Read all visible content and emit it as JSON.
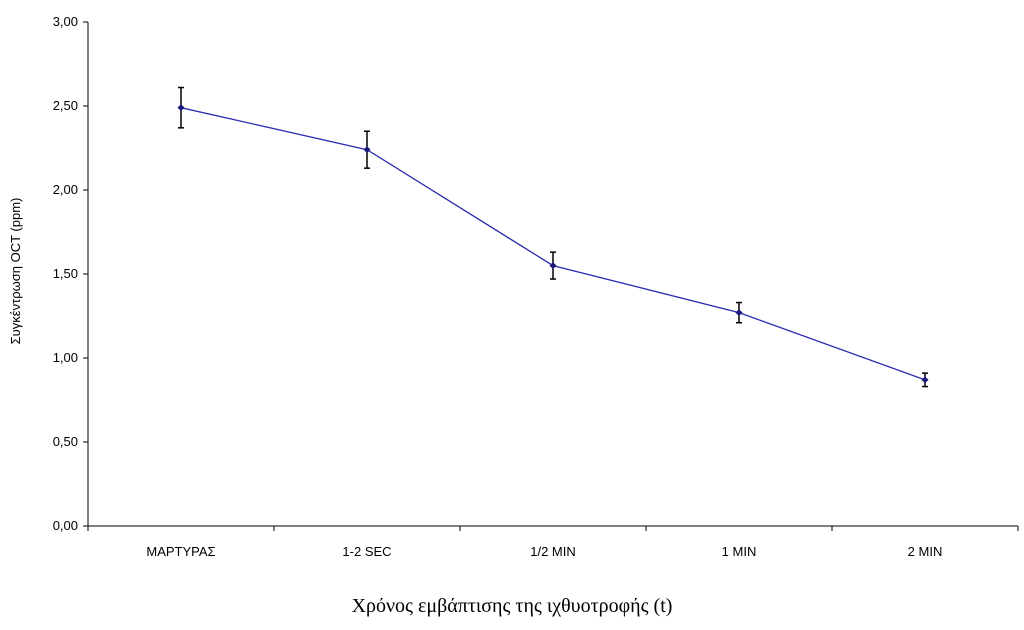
{
  "chart_data": {
    "type": "line",
    "title": "",
    "xlabel": "Χρόνος εμβάπτισης της ιχθυοτροφής (t)",
    "ylabel": "Συγκέντρωση OCT (ppm)",
    "categories": [
      "ΜΑΡΤΥΡΑΣ",
      "1-2 SEC",
      "1/2 MIN",
      "1 MIN",
      "2 MIN"
    ],
    "series": [
      {
        "values": [
          2.49,
          2.24,
          1.55,
          1.27,
          0.87
        ],
        "error": [
          0.12,
          0.11,
          0.08,
          0.06,
          0.04
        ],
        "color": "#2b2bb0"
      }
    ],
    "ylim": [
      0,
      3
    ],
    "yticks": [
      "0,00",
      "0,50",
      "1,00",
      "1,50",
      "2,00",
      "2,50",
      "3,00"
    ],
    "ytick_values": [
      0,
      0.5,
      1,
      1.5,
      2,
      2.5,
      3
    ],
    "grid": false,
    "legend": "none",
    "error_bar_color": "#000000",
    "axis_color": "#000000"
  }
}
